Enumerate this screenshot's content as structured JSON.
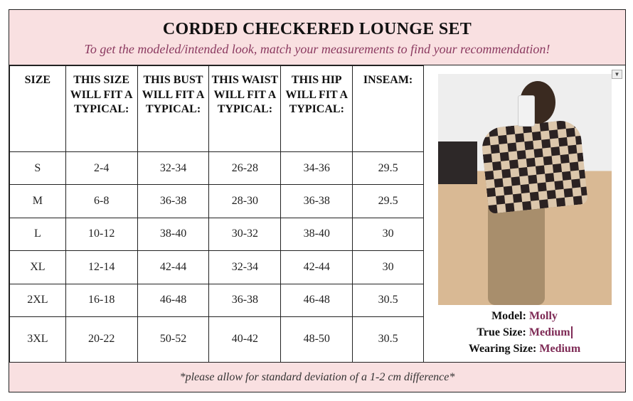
{
  "header": {
    "title": "CORDED CHECKERED LOUNGE SET",
    "subtitle": "To get the modeled/intended look, match your measurements to find your recommendation!"
  },
  "table": {
    "columns": [
      "SIZE",
      "THIS SIZE WILL FIT A TYPICAL:",
      "THIS BUST WILL FIT A TYPICAL:",
      "THIS WAIST WILL FIT A TYPICAL:",
      "THIS HIP WILL FIT A TYPICAL:",
      "INSEAM:"
    ],
    "rows": [
      [
        "S",
        "2-4",
        "32-34",
        "26-28",
        "34-36",
        "29.5"
      ],
      [
        "M",
        "6-8",
        "36-38",
        "28-30",
        "36-38",
        "29.5"
      ],
      [
        "L",
        "10-12",
        "38-40",
        "30-32",
        "38-40",
        "30"
      ],
      [
        "XL",
        "12-14",
        "42-44",
        "32-34",
        "42-44",
        "30"
      ],
      [
        "2XL",
        "16-18",
        "46-48",
        "36-38",
        "46-48",
        "30.5"
      ],
      [
        "3XL",
        "20-22",
        "50-52",
        "40-42",
        "48-50",
        "30.5"
      ]
    ]
  },
  "model": {
    "model_label": "Model:",
    "model_name": "Molly",
    "true_label": "True Size:",
    "true_size": "Medium",
    "wearing_label": "Wearing Size:",
    "wearing_size": "Medium",
    "dropdown_icon": "triangle-down-icon"
  },
  "footer": {
    "note": "*please allow for standard deviation of a 1-2 cm difference*"
  },
  "colors": {
    "header_bg": "#f9e0e1",
    "accent": "#7e2a55"
  }
}
